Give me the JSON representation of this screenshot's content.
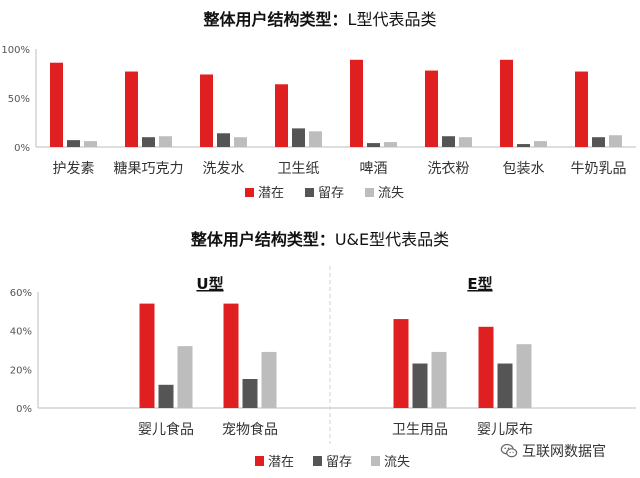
{
  "colors": {
    "潜在": "#e02020",
    "留存": "#555555",
    "流失": "#bdbdbd",
    "axis": "#bdbdbd",
    "grid": "#d0d0d0",
    "tick": "#555555"
  },
  "watermark": {
    "text": "互联网数据官",
    "icon": "wechat-icon"
  },
  "chart_data": [
    {
      "type": "bar",
      "title_bold": "整体用户结构类型：",
      "title_rest": "L型代表品类",
      "categories": [
        "护发素",
        "糖果巧克力",
        "洗发水",
        "卫生纸",
        "啤酒",
        "洗衣粉",
        "包装水",
        "牛奶乳品"
      ],
      "series": [
        {
          "name": "潜在",
          "values": [
            86,
            77,
            74,
            64,
            89,
            78,
            89,
            77
          ]
        },
        {
          "name": "留存",
          "values": [
            7,
            10,
            14,
            19,
            4,
            11,
            3,
            10
          ]
        },
        {
          "name": "流失",
          "values": [
            6,
            11,
            10,
            16,
            5,
            10,
            6,
            12
          ]
        }
      ],
      "yticks": [
        "0%",
        "50%",
        "100%"
      ],
      "ylim": [
        0,
        100
      ],
      "legend_position": "bottom",
      "grid": false
    },
    {
      "type": "bar",
      "title_bold": "整体用户结构类型：",
      "title_rest": "U&E型代表品类",
      "groups": [
        {
          "label": "U型",
          "categories": [
            "婴儿食品",
            "宠物食品"
          ]
        },
        {
          "label": "E型",
          "categories": [
            "卫生用品",
            "婴儿尿布"
          ]
        }
      ],
      "categories": [
        "婴儿食品",
        "宠物食品",
        "卫生用品",
        "婴儿尿布"
      ],
      "series": [
        {
          "name": "潜在",
          "values": [
            54,
            54,
            46,
            42
          ]
        },
        {
          "name": "留存",
          "values": [
            12,
            15,
            23,
            23
          ]
        },
        {
          "name": "流失",
          "values": [
            32,
            29,
            29,
            33
          ]
        }
      ],
      "yticks": [
        "0%",
        "20%",
        "40%",
        "60%"
      ],
      "ylim": [
        0,
        60
      ],
      "legend_position": "bottom",
      "grid": false
    }
  ]
}
